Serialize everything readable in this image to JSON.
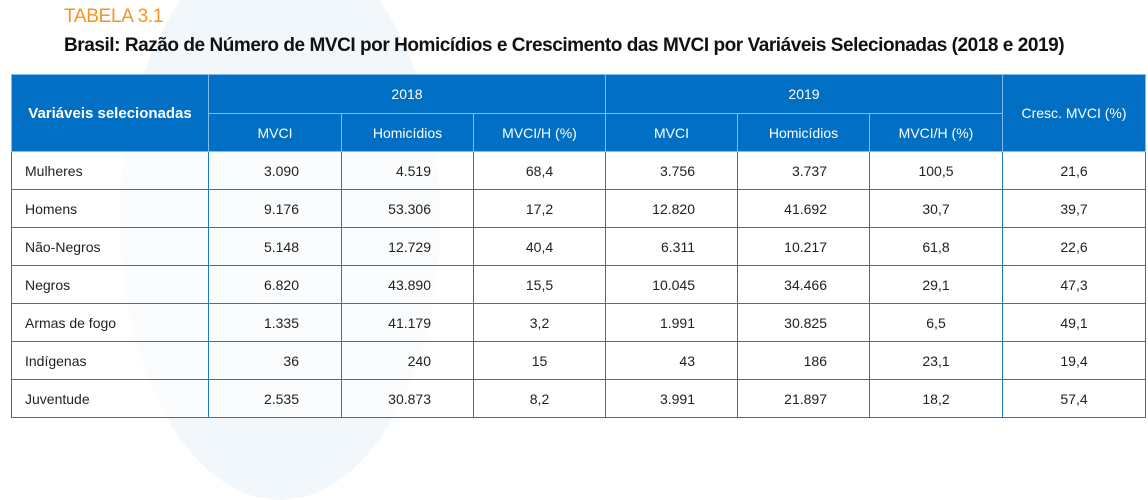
{
  "header": {
    "label": "TABELA 3.1",
    "title": "Brasil: Razão de Número de MVCI por Homicídios e Crescimento das MVCI por Variáveis Selecionadas (2018 e 2019)"
  },
  "colors": {
    "label_orange": "#f7941d",
    "header_blue": "#016fc4",
    "border_blue": "#1d7ac4"
  },
  "table": {
    "first_column_header": "Variáveis selecionadas",
    "year_groups": [
      "2018",
      "2019"
    ],
    "sub_headers": [
      "MVCI",
      "Homicídios",
      "MVCI/H (%)",
      "MVCI",
      "Homicídios",
      "MVCI/H (%)"
    ],
    "growth_header": "Cresc. MVCI (%)",
    "rows": [
      {
        "name": "Mulheres",
        "values": [
          "3.090",
          "4.519",
          "68,4",
          "3.756",
          "3.737",
          "100,5",
          "21,6"
        ]
      },
      {
        "name": "Homens",
        "values": [
          "9.176",
          "53.306",
          "17,2",
          "12.820",
          "41.692",
          "30,7",
          "39,7"
        ]
      },
      {
        "name": "Não-Negros",
        "values": [
          "5.148",
          "12.729",
          "40,4",
          "6.311",
          "10.217",
          "61,8",
          "22,6"
        ]
      },
      {
        "name": "Negros",
        "values": [
          "6.820",
          "43.890",
          "15,5",
          "10.045",
          "34.466",
          "29,1",
          "47,3"
        ]
      },
      {
        "name": "Armas de fogo",
        "values": [
          "1.335",
          "41.179",
          "3,2",
          "1.991",
          "30.825",
          "6,5",
          "49,1"
        ]
      },
      {
        "name": "Indígenas",
        "values": [
          "36",
          "240",
          "15",
          "43",
          "186",
          "23,1",
          "19,4"
        ]
      },
      {
        "name": "Juventude",
        "values": [
          "2.535",
          "30.873",
          "8,2",
          "3.991",
          "21.897",
          "18,2",
          "57,4"
        ]
      }
    ]
  }
}
